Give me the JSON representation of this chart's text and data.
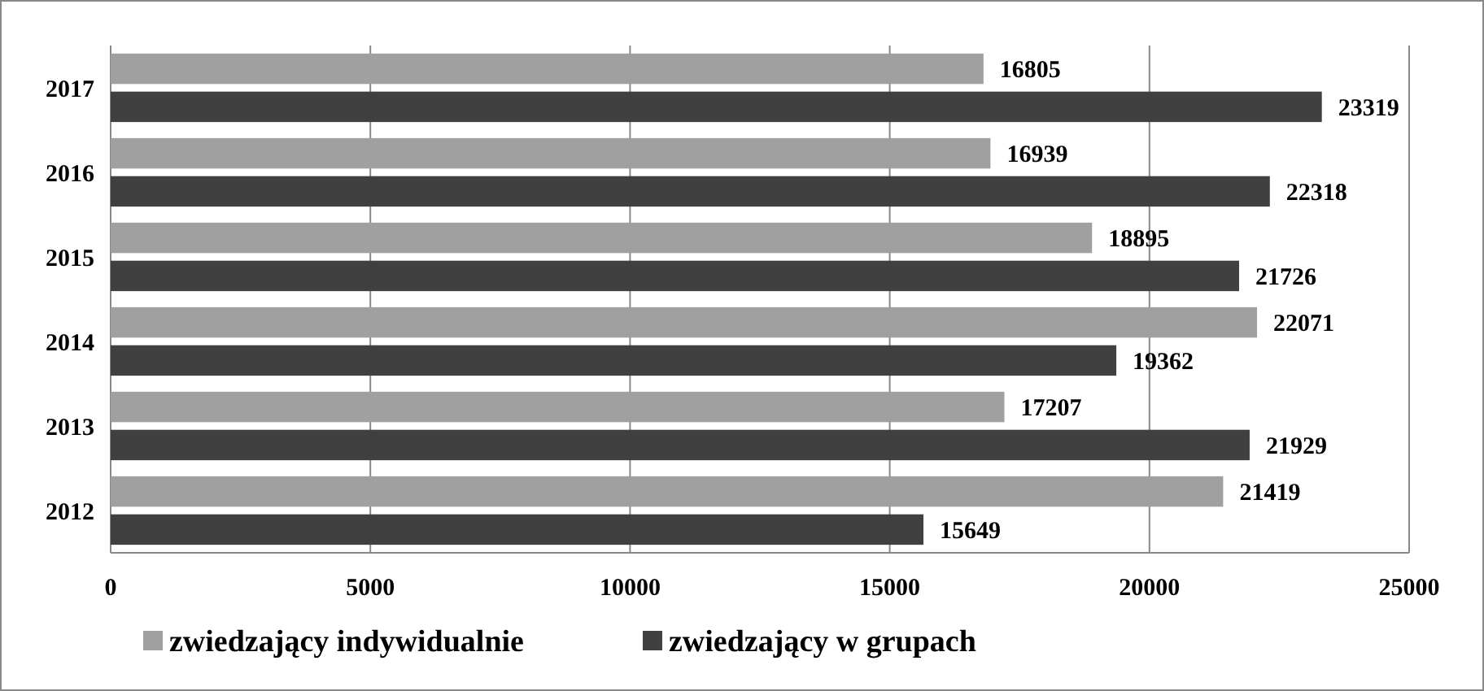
{
  "chart_data": {
    "type": "bar",
    "orientation": "horizontal",
    "categories": [
      "2017",
      "2016",
      "2015",
      "2014",
      "2013",
      "2012"
    ],
    "series": [
      {
        "name": "zwiedzający indywidualnie",
        "color": "#a0a0a0",
        "values": [
          16805,
          16939,
          18895,
          22071,
          17207,
          21419
        ]
      },
      {
        "name": "zwiedzający w grupach",
        "color": "#404040",
        "values": [
          23319,
          22318,
          21726,
          19362,
          21929,
          15649
        ]
      }
    ],
    "xlim": [
      0,
      25000
    ],
    "xticks": [
      0,
      5000,
      10000,
      15000,
      20000,
      25000
    ],
    "grid": "x",
    "legend": "bottom",
    "data_labels": true
  }
}
